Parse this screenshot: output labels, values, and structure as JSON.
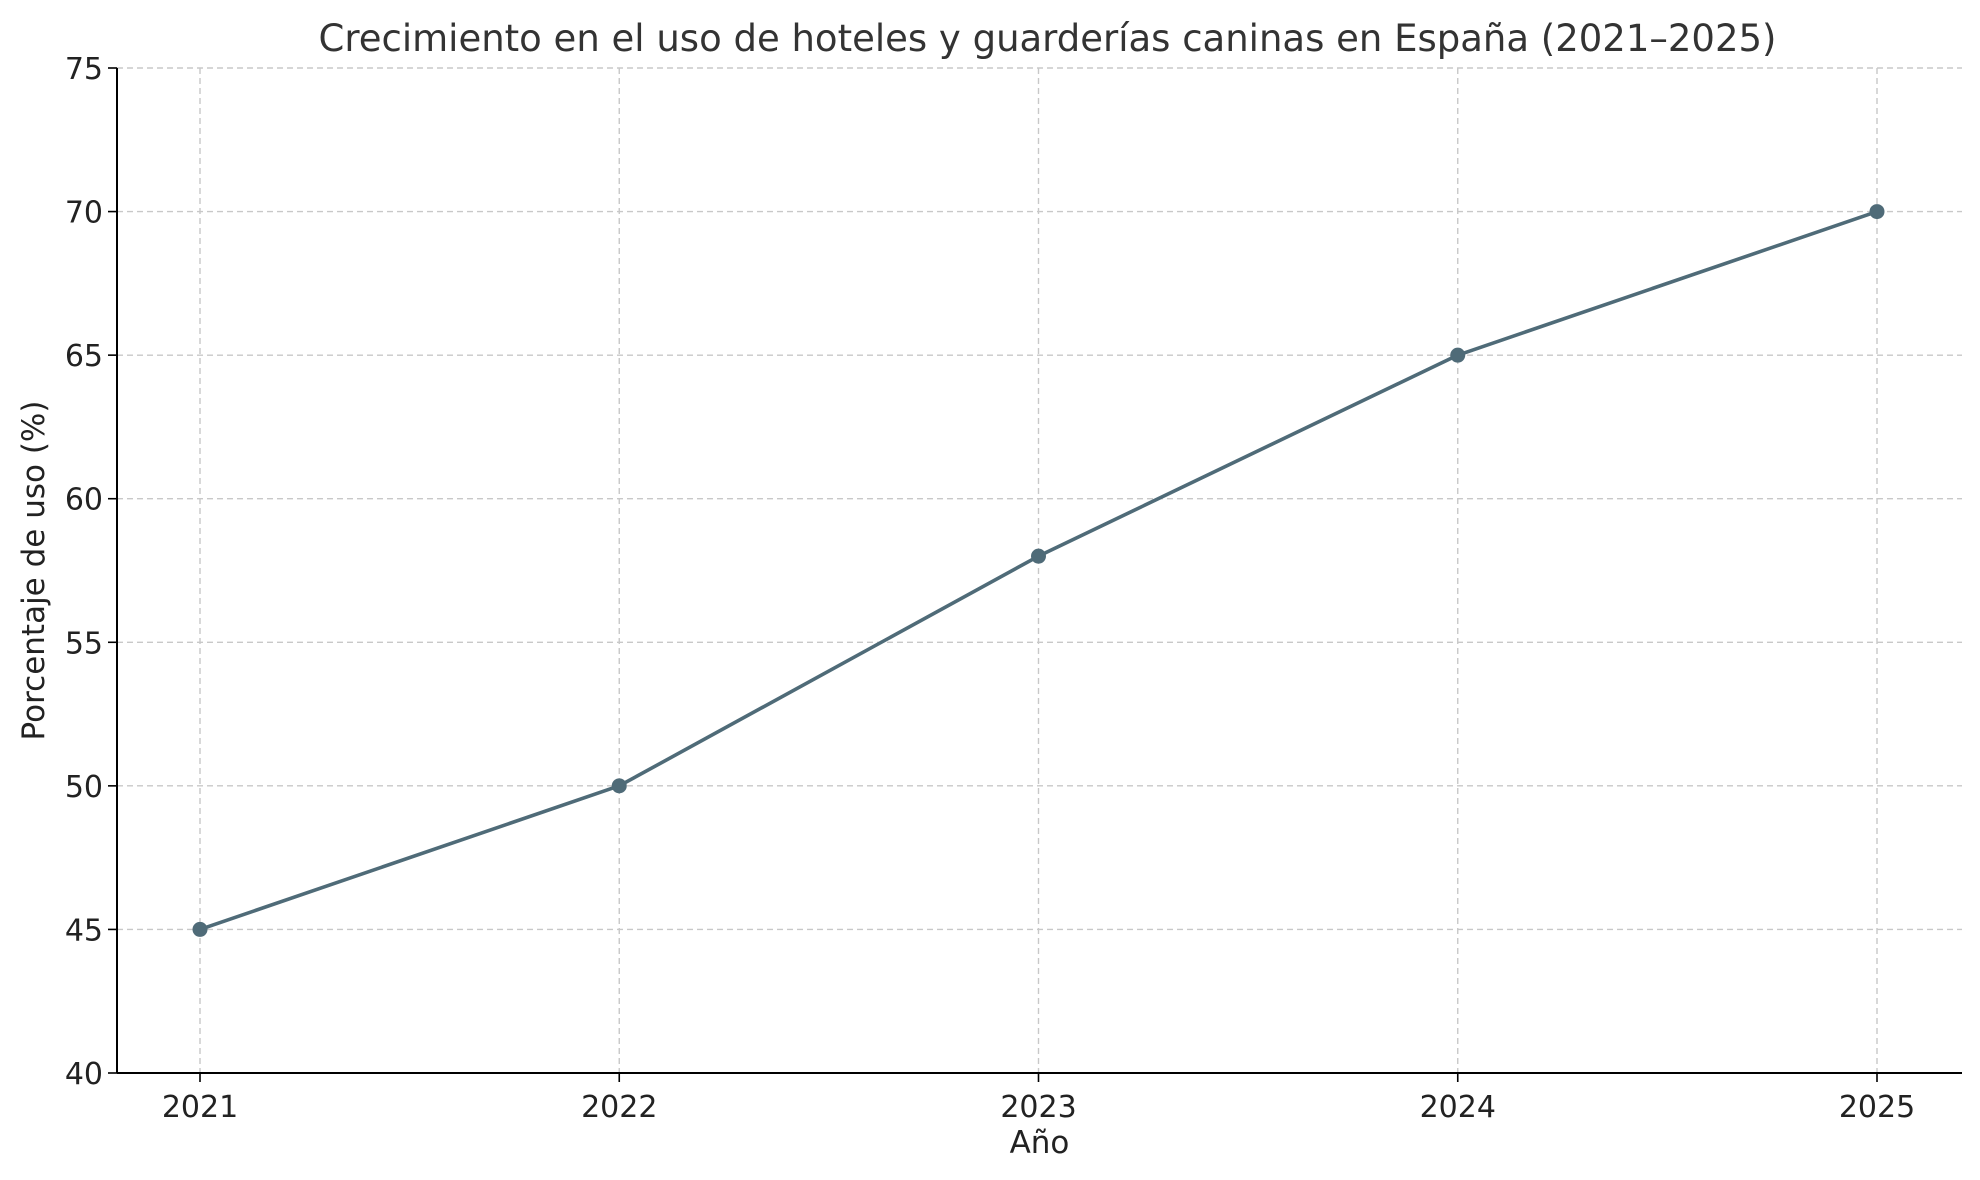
{
  "chart_data": {
    "type": "line",
    "title": "Crecimiento en el uso de hoteles y guarderías caninas en España (2021–2025)",
    "xlabel": "Año",
    "ylabel": "Porcentaje de uso (%)",
    "categories": [
      "2021",
      "2022",
      "2023",
      "2024",
      "2025"
    ],
    "series": [
      {
        "values": [
          45,
          50,
          58,
          65,
          70
        ],
        "color": "#4f6b78"
      }
    ],
    "ylim": [
      40,
      75
    ],
    "yticks": [
      40,
      45,
      50,
      55,
      60,
      65,
      70,
      75
    ],
    "grid": true,
    "legend": "none"
  }
}
